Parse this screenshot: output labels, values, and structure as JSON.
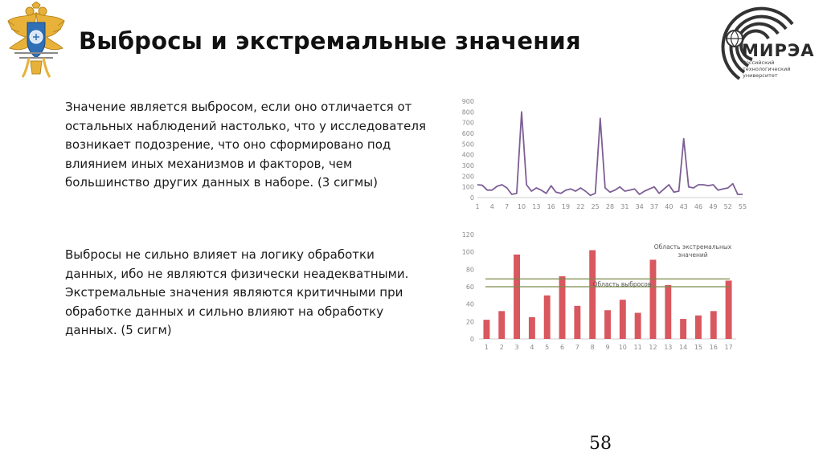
{
  "header": {
    "title": "Выбросы и экстремальные значения",
    "logo_name": "МИРЭА",
    "logo_sub": "Российский технологический университет"
  },
  "body": {
    "paragraph1": "Значение является выбросом, если оно отличается от остальных наблюдений настолько, что у исследователя возникает подозрение, что оно сформировано под влиянием иных механизмов и факторов, чем большинство других данных в наборе. (3 сигмы)",
    "paragraph2": "Выбросы не сильно влияет на логику обработки данных, ибо не являются физически неадекватными. Экстремальные значения являются критичными при обработке данных и сильно влияют на обработку данных. (5 сигм)"
  },
  "footer": {
    "page_number": "58"
  },
  "colors": {
    "line": "#7e5e96",
    "bar": "#d9575e",
    "threshold": "#7a8a4a",
    "axis": "#cfcfcf"
  },
  "chart_data": [
    {
      "type": "line",
      "title": "",
      "xlabel": "",
      "ylabel": "",
      "ylim": [
        0,
        900
      ],
      "yticks": [
        0,
        100,
        200,
        300,
        400,
        500,
        600,
        700,
        800,
        900
      ],
      "xticks": [
        1,
        4,
        7,
        10,
        13,
        16,
        19,
        22,
        25,
        28,
        31,
        34,
        37,
        40,
        43,
        46,
        49,
        52,
        55
      ],
      "x": [
        1,
        2,
        3,
        4,
        5,
        6,
        7,
        8,
        9,
        10,
        11,
        12,
        13,
        14,
        15,
        16,
        17,
        18,
        19,
        20,
        21,
        22,
        23,
        24,
        25,
        26,
        27,
        28,
        29,
        30,
        31,
        32,
        33,
        34,
        35,
        36,
        37,
        38,
        39,
        40,
        41,
        42,
        43,
        44,
        45,
        46,
        47,
        48,
        49,
        50,
        51,
        52,
        53,
        54,
        55
      ],
      "series": [
        {
          "values": [
            120,
            115,
            70,
            70,
            105,
            120,
            90,
            30,
            40,
            800,
            120,
            60,
            90,
            70,
            40,
            110,
            50,
            40,
            70,
            80,
            60,
            90,
            60,
            20,
            40,
            740,
            90,
            50,
            70,
            100,
            60,
            70,
            80,
            30,
            60,
            80,
            100,
            40,
            80,
            120,
            50,
            60,
            550,
            100,
            90,
            120,
            120,
            110,
            120,
            70,
            80,
            90,
            130,
            30,
            30
          ]
        }
      ],
      "grid": false
    },
    {
      "type": "bar",
      "title": "",
      "xlabel": "",
      "ylabel": "",
      "ylim": [
        0,
        120
      ],
      "yticks": [
        0,
        20,
        40,
        60,
        80,
        100,
        120
      ],
      "categories": [
        "1",
        "2",
        "3",
        "4",
        "5",
        "6",
        "7",
        "8",
        "9",
        "10",
        "11",
        "12",
        "13",
        "14",
        "15",
        "16",
        "17"
      ],
      "series": [
        {
          "values": [
            22,
            32,
            97,
            25,
            50,
            72,
            38,
            102,
            33,
            45,
            30,
            91,
            62,
            23,
            27,
            32,
            67
          ]
        }
      ],
      "thresholds": [
        {
          "label": "Область выбросов",
          "value": 69
        },
        {
          "label": "",
          "value": 60
        }
      ],
      "annotations": [
        "Область экстремальных значений",
        "Область выбросов"
      ],
      "grid": false
    }
  ]
}
